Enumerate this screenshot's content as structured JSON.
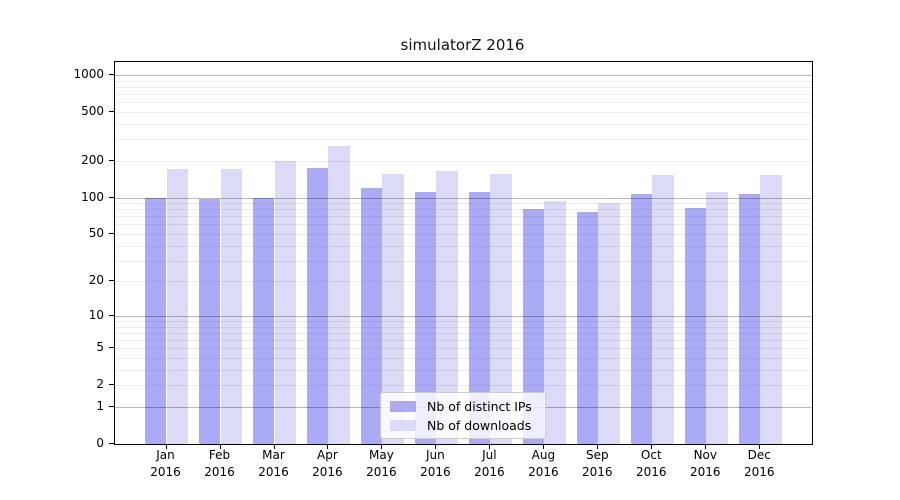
{
  "title": "simulatorZ 2016",
  "chart_data": {
    "type": "bar",
    "title": "simulatorZ 2016",
    "categories": [
      "Jan 2016",
      "Feb 2016",
      "Mar 2016",
      "Apr 2016",
      "May 2016",
      "Jun 2016",
      "Jul 2016",
      "Aug 2016",
      "Sep 2016",
      "Oct 2016",
      "Nov 2016",
      "Dec 2016"
    ],
    "series": [
      {
        "name": "Nb of distinct IPs",
        "color": "#aaaaf7",
        "values": [
          100,
          97,
          100,
          175,
          119,
          110,
          110,
          80,
          76,
          106,
          82,
          107
        ]
      },
      {
        "name": "Nb of downloads",
        "color": "#dbdbf8",
        "values": [
          170,
          170,
          200,
          262,
          156,
          166,
          155,
          94,
          90,
          152,
          110,
          152
        ]
      }
    ],
    "yscale": "log10(1+x)",
    "yticks": [
      0,
      1,
      2,
      5,
      10,
      20,
      50,
      100,
      200,
      500,
      1000
    ],
    "ylim": [
      0,
      1000
    ],
    "grid": "horizontal, major at decades, faint log minors, drawn over bars",
    "legend_position": "lower center",
    "xlabel": "",
    "ylabel": ""
  },
  "legend": {
    "items": [
      {
        "label": "Nb of distinct IPs",
        "color": "#aaaaf7"
      },
      {
        "label": "Nb of downloads",
        "color": "#dbdbf8"
      }
    ]
  },
  "colors": {
    "bar_dark": "#aaaaf7",
    "bar_light": "#dbdbf8",
    "axis": "#000000",
    "grid_major": "rgba(0,0,0,0.28)",
    "grid_minor": "rgba(0,0,0,0.07)",
    "background": "#ffffff"
  }
}
